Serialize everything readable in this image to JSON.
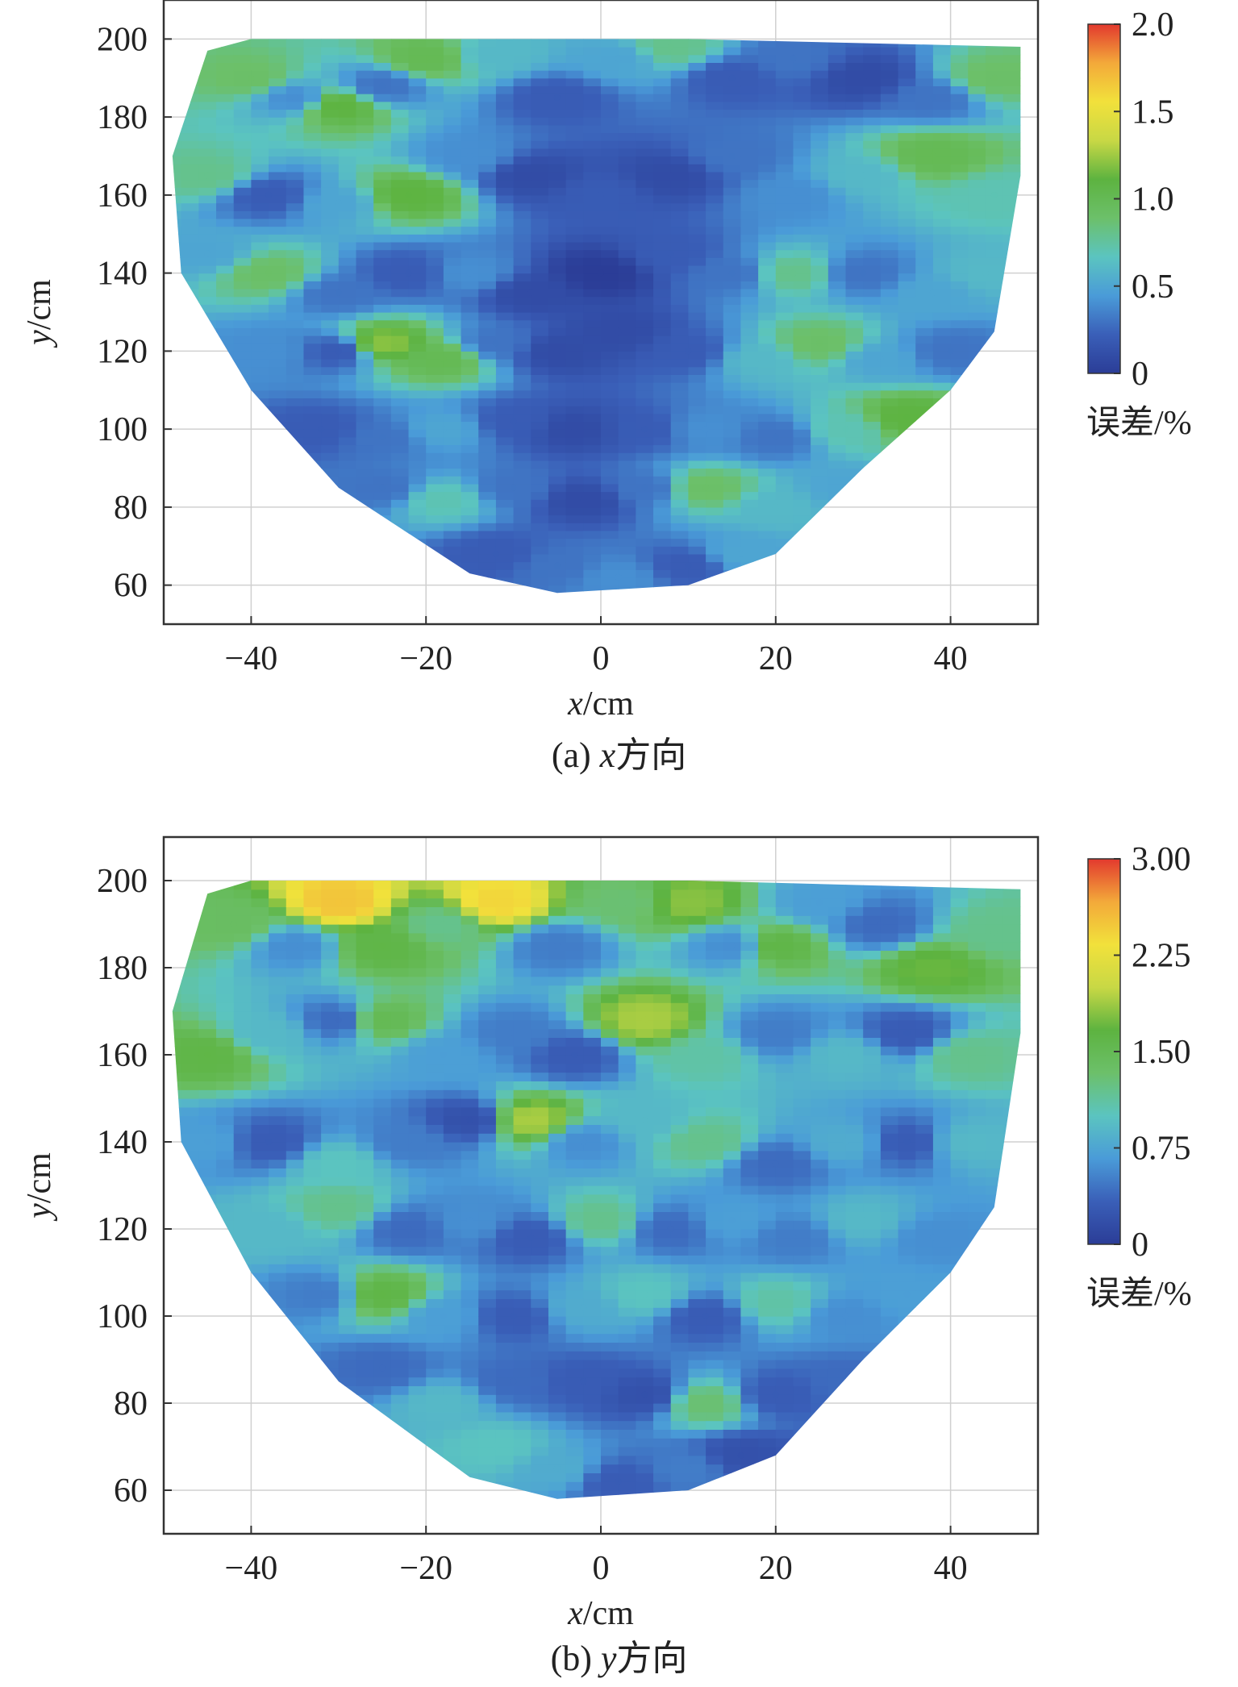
{
  "colors": {
    "colormap": [
      "#2b3d97",
      "#3a5fb8",
      "#4a9bd8",
      "#5bc4c0",
      "#6cc06a",
      "#5db340",
      "#c8d845",
      "#f2e13b",
      "#f3a93a",
      "#e2392e"
    ],
    "axis": "#333333",
    "grid": "#d0d0d0"
  },
  "chart_data": [
    {
      "id": "a",
      "type": "heatmap",
      "caption": {
        "prefix": "(a) ",
        "var": "x",
        "suffix": "方向"
      },
      "xlabel": {
        "var": "x",
        "unit": "/cm"
      },
      "ylabel": {
        "var": "y",
        "unit": "/cm"
      },
      "xlim": [
        -50,
        50
      ],
      "ylim": [
        50,
        210
      ],
      "xticks": [
        -40,
        -20,
        0,
        20,
        40
      ],
      "xtick_labels": [
        "−40",
        "−20",
        "0",
        "20",
        "40"
      ],
      "yticks": [
        60,
        80,
        100,
        120,
        140,
        160,
        180,
        200
      ],
      "ytick_labels": [
        "60",
        "80",
        "100",
        "120",
        "140",
        "160",
        "180",
        "200"
      ],
      "grid": true,
      "colorbar": {
        "min": 0,
        "max": 2.0,
        "ticks": [
          0,
          0.5,
          1.0,
          1.5,
          2.0
        ],
        "tick_labels": [
          "0",
          "0.5",
          "1.0",
          "1.5",
          "2.0"
        ],
        "label": "误差/%"
      },
      "boundary": [
        [
          -45,
          197
        ],
        [
          -40,
          200
        ],
        [
          0,
          200
        ],
        [
          10,
          200
        ],
        [
          48,
          198
        ],
        [
          48,
          165
        ],
        [
          45,
          125
        ],
        [
          40,
          110
        ],
        [
          30,
          90
        ],
        [
          20,
          68
        ],
        [
          10,
          60
        ],
        [
          -5,
          58
        ],
        [
          -15,
          63
        ],
        [
          -30,
          85
        ],
        [
          -40,
          110
        ],
        [
          -48,
          140
        ],
        [
          -49,
          170
        ]
      ],
      "points": [
        [
          -40,
          190,
          0.9
        ],
        [
          -35,
          185,
          0.4
        ],
        [
          -30,
          183,
          1.1
        ],
        [
          -25,
          188,
          0.3
        ],
        [
          -20,
          195,
          1.0
        ],
        [
          -12,
          196,
          0.6
        ],
        [
          -5,
          185,
          0.2
        ],
        [
          2,
          195,
          0.5
        ],
        [
          8,
          198,
          0.8
        ],
        [
          15,
          190,
          0.2
        ],
        [
          22,
          195,
          0.3
        ],
        [
          30,
          190,
          0.1
        ],
        [
          38,
          185,
          0.3
        ],
        [
          45,
          190,
          0.9
        ],
        [
          -45,
          165,
          0.8
        ],
        [
          -38,
          160,
          0.2
        ],
        [
          -30,
          158,
          0.5
        ],
        [
          -22,
          160,
          1.1
        ],
        [
          -15,
          170,
          0.4
        ],
        [
          -8,
          165,
          0.1
        ],
        [
          0,
          160,
          0.2
        ],
        [
          8,
          165,
          0.1
        ],
        [
          15,
          170,
          0.3
        ],
        [
          22,
          160,
          0.4
        ],
        [
          30,
          165,
          0.6
        ],
        [
          38,
          170,
          1.0
        ],
        [
          45,
          160,
          0.7
        ],
        [
          -45,
          145,
          0.5
        ],
        [
          -38,
          140,
          0.9
        ],
        [
          -30,
          135,
          0.3
        ],
        [
          -22,
          140,
          0.2
        ],
        [
          -15,
          140,
          0.4
        ],
        [
          -8,
          135,
          0.1
        ],
        [
          0,
          140,
          0.0
        ],
        [
          8,
          145,
          0.2
        ],
        [
          15,
          140,
          0.3
        ],
        [
          22,
          140,
          0.8
        ],
        [
          30,
          140,
          0.3
        ],
        [
          38,
          135,
          0.5
        ],
        [
          44,
          140,
          0.6
        ],
        [
          -38,
          120,
          0.4
        ],
        [
          -30,
          120,
          0.2
        ],
        [
          -25,
          122,
          1.2
        ],
        [
          -18,
          118,
          1.0
        ],
        [
          -12,
          122,
          0.3
        ],
        [
          -5,
          120,
          0.1
        ],
        [
          2,
          125,
          0.1
        ],
        [
          10,
          120,
          0.2
        ],
        [
          18,
          118,
          0.6
        ],
        [
          25,
          122,
          0.9
        ],
        [
          32,
          118,
          0.5
        ],
        [
          40,
          120,
          0.3
        ],
        [
          -32,
          100,
          0.2
        ],
        [
          -25,
          98,
          0.3
        ],
        [
          -18,
          100,
          0.5
        ],
        [
          -10,
          102,
          0.2
        ],
        [
          -3,
          100,
          0.1
        ],
        [
          5,
          100,
          0.2
        ],
        [
          12,
          100,
          0.4
        ],
        [
          20,
          98,
          0.3
        ],
        [
          28,
          100,
          0.7
        ],
        [
          35,
          103,
          1.1
        ],
        [
          -25,
          85,
          0.3
        ],
        [
          -18,
          82,
          0.7
        ],
        [
          -10,
          85,
          0.3
        ],
        [
          -2,
          82,
          0.1
        ],
        [
          5,
          85,
          0.3
        ],
        [
          12,
          85,
          0.9
        ],
        [
          20,
          80,
          0.6
        ],
        [
          28,
          85,
          0.5
        ],
        [
          -12,
          68,
          0.2
        ],
        [
          -5,
          65,
          0.3
        ],
        [
          2,
          62,
          0.4
        ],
        [
          10,
          65,
          0.2
        ],
        [
          16,
          68,
          0.5
        ]
      ]
    },
    {
      "id": "b",
      "type": "heatmap",
      "caption": {
        "prefix": "(b) ",
        "var": "y",
        "suffix": "方向"
      },
      "xlabel": {
        "var": "x",
        "unit": "/cm"
      },
      "ylabel": {
        "var": "y",
        "unit": "/cm"
      },
      "xlim": [
        -50,
        50
      ],
      "ylim": [
        50,
        210
      ],
      "xticks": [
        -40,
        -20,
        0,
        20,
        40
      ],
      "xtick_labels": [
        "−40",
        "−20",
        "0",
        "20",
        "40"
      ],
      "yticks": [
        60,
        80,
        100,
        120,
        140,
        160,
        180,
        200
      ],
      "ytick_labels": [
        "60",
        "80",
        "100",
        "120",
        "140",
        "160",
        "180",
        "200"
      ],
      "grid": true,
      "colorbar": {
        "min": 0,
        "max": 3.0,
        "ticks": [
          0,
          0.75,
          1.5,
          2.25,
          3.0
        ],
        "tick_labels": [
          "0",
          "0.75",
          "1.50",
          "2.25",
          "3.00"
        ],
        "label": "误差/%"
      },
      "boundary": [
        [
          -45,
          197
        ],
        [
          -40,
          200
        ],
        [
          0,
          200
        ],
        [
          10,
          200
        ],
        [
          48,
          198
        ],
        [
          48,
          165
        ],
        [
          45,
          125
        ],
        [
          40,
          110
        ],
        [
          30,
          90
        ],
        [
          20,
          68
        ],
        [
          10,
          60
        ],
        [
          -5,
          58
        ],
        [
          -15,
          63
        ],
        [
          -30,
          85
        ],
        [
          -40,
          110
        ],
        [
          -48,
          140
        ],
        [
          -49,
          170
        ]
      ],
      "points": [
        [
          -42,
          190,
          1.4
        ],
        [
          -35,
          185,
          0.6
        ],
        [
          -30,
          195,
          2.5
        ],
        [
          -25,
          185,
          1.6
        ],
        [
          -18,
          190,
          1.2
        ],
        [
          -12,
          195,
          2.4
        ],
        [
          -5,
          185,
          0.5
        ],
        [
          3,
          195,
          1.3
        ],
        [
          10,
          195,
          1.8
        ],
        [
          15,
          185,
          0.6
        ],
        [
          20,
          185,
          1.6
        ],
        [
          25,
          195,
          0.7
        ],
        [
          32,
          190,
          0.4
        ],
        [
          38,
          180,
          1.7
        ],
        [
          45,
          188,
          1.2
        ],
        [
          -45,
          160,
          1.6
        ],
        [
          -38,
          165,
          0.9
        ],
        [
          -30,
          168,
          0.4
        ],
        [
          -25,
          168,
          1.5
        ],
        [
          -18,
          160,
          0.7
        ],
        [
          -10,
          165,
          0.5
        ],
        [
          -3,
          160,
          0.3
        ],
        [
          5,
          168,
          1.9
        ],
        [
          12,
          160,
          1.1
        ],
        [
          20,
          165,
          0.5
        ],
        [
          28,
          160,
          0.9
        ],
        [
          35,
          165,
          0.3
        ],
        [
          42,
          160,
          1.2
        ],
        [
          -45,
          140,
          0.7
        ],
        [
          -38,
          140,
          0.3
        ],
        [
          -30,
          135,
          1.0
        ],
        [
          -22,
          140,
          0.5
        ],
        [
          -15,
          145,
          0.2
        ],
        [
          -8,
          145,
          1.9
        ],
        [
          -2,
          140,
          0.6
        ],
        [
          5,
          145,
          0.9
        ],
        [
          12,
          140,
          1.2
        ],
        [
          20,
          135,
          0.4
        ],
        [
          28,
          140,
          0.8
        ],
        [
          35,
          140,
          0.3
        ],
        [
          42,
          140,
          0.9
        ],
        [
          -38,
          120,
          0.9
        ],
        [
          -30,
          125,
          1.2
        ],
        [
          -22,
          120,
          0.4
        ],
        [
          -15,
          122,
          0.6
        ],
        [
          -8,
          118,
          0.3
        ],
        [
          0,
          122,
          1.2
        ],
        [
          8,
          120,
          0.4
        ],
        [
          15,
          122,
          0.7
        ],
        [
          22,
          118,
          0.5
        ],
        [
          30,
          122,
          0.9
        ],
        [
          38,
          118,
          0.6
        ],
        [
          -32,
          105,
          0.5
        ],
        [
          -25,
          105,
          1.6
        ],
        [
          -18,
          100,
          0.7
        ],
        [
          -10,
          100,
          0.3
        ],
        [
          -2,
          102,
          0.8
        ],
        [
          5,
          105,
          1.0
        ],
        [
          12,
          100,
          0.3
        ],
        [
          20,
          103,
          1.1
        ],
        [
          28,
          100,
          0.6
        ],
        [
          35,
          105,
          0.7
        ],
        [
          -25,
          88,
          0.4
        ],
        [
          -18,
          80,
          0.9
        ],
        [
          -10,
          85,
          0.4
        ],
        [
          -2,
          85,
          0.3
        ],
        [
          5,
          82,
          0.2
        ],
        [
          12,
          80,
          1.3
        ],
        [
          20,
          82,
          0.3
        ],
        [
          28,
          85,
          0.4
        ],
        [
          -12,
          70,
          1.0
        ],
        [
          -5,
          65,
          0.8
        ],
        [
          2,
          62,
          0.3
        ],
        [
          10,
          65,
          0.5
        ],
        [
          16,
          68,
          0.2
        ]
      ]
    }
  ]
}
